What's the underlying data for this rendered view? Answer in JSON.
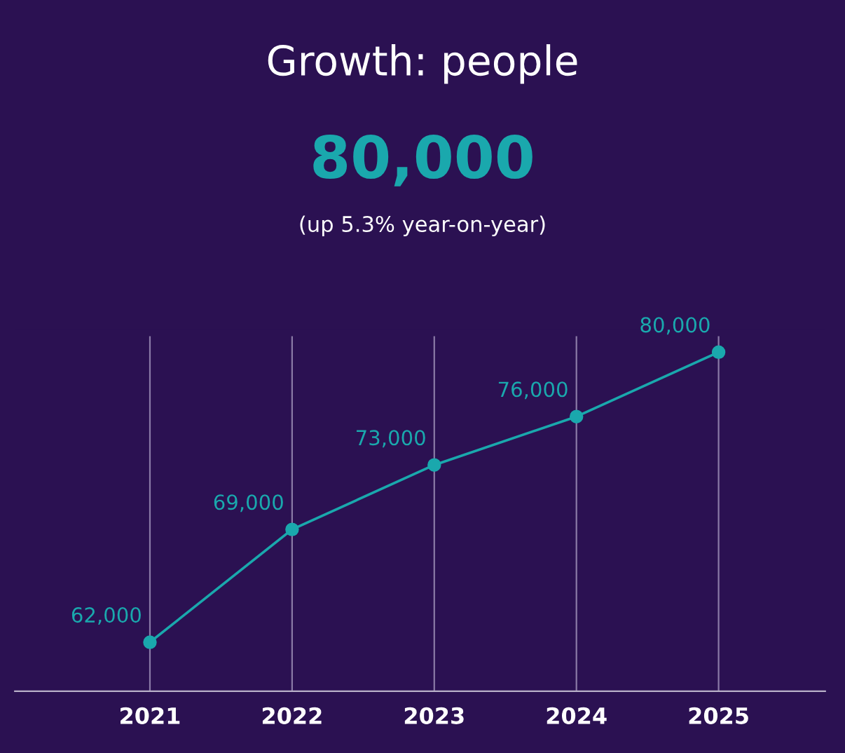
{
  "chart_data": {
    "type": "line",
    "title": "Growth: people",
    "subtitle": "80,000",
    "annotations": [
      "(up 5.3% year-on-year)"
    ],
    "categories": [
      "2021",
      "2022",
      "2023",
      "2024",
      "2025"
    ],
    "series": [
      {
        "color": "#1aa8ad",
        "values": [
          62000,
          69000,
          73000,
          76000,
          80000
        ],
        "value_labels": [
          "62,000",
          "69,000",
          "73,000",
          "76,000",
          "80,000"
        ]
      }
    ],
    "grid": "x",
    "marker": "circle",
    "line_style": "solid",
    "tick_labels": "x",
    "legend": false
  }
}
